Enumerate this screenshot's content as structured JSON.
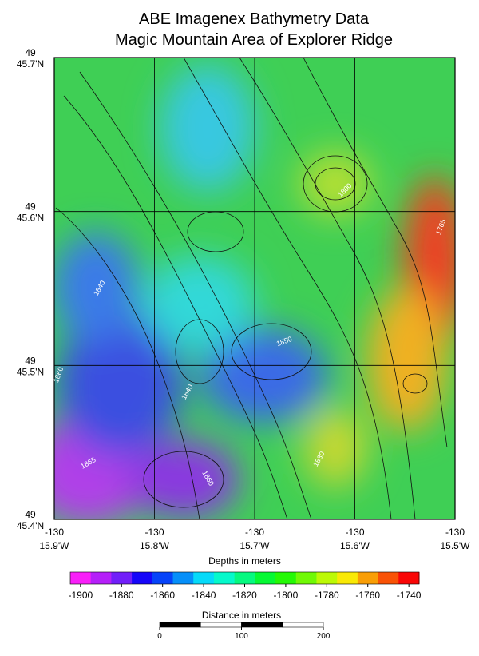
{
  "title": [
    "ABE Imagenex Bathymetry Data",
    "Magic Mountain Area of Explorer Ridge"
  ],
  "lat_labels": [
    {
      "deg": "49",
      "min": "45.7'N"
    },
    {
      "deg": "49",
      "min": "45.6'N"
    },
    {
      "deg": "49",
      "min": "45.5'N"
    },
    {
      "deg": "49",
      "min": "45.4'N"
    }
  ],
  "lon_labels": [
    {
      "deg": "-130",
      "min": "15.9'W"
    },
    {
      "deg": "-130",
      "min": "15.8'W"
    },
    {
      "deg": "-130",
      "min": "15.7'W"
    },
    {
      "deg": "-130",
      "min": "15.6'W"
    },
    {
      "deg": "-130",
      "min": "15.5'W"
    }
  ],
  "contour_labels": [
    1850,
    1840,
    1860,
    1865,
    1860,
    1840,
    1765,
    1800,
    1830
  ],
  "colorbar": {
    "label": "Depths in meters",
    "range": [
      -1905,
      -1735
    ],
    "ticks": [
      -1900,
      -1880,
      -1860,
      -1840,
      -1820,
      -1800,
      -1780,
      -1760,
      -1740
    ]
  },
  "scalebar": {
    "label": "Distance in meters",
    "range": [
      0,
      200
    ],
    "ticks": [
      0,
      100,
      200
    ]
  }
}
